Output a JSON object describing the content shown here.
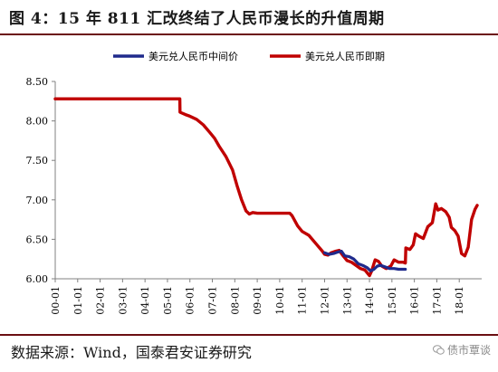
{
  "title": "图 4：15 年 811 汇改终结了人民币漫长的升值周期",
  "source": "数据来源：Wind，国泰君安证券研究",
  "watermark": "债市覃谈",
  "chart_data": {
    "type": "line",
    "ylim": [
      6.0,
      8.5
    ],
    "yticks": [
      "6.00",
      "6.50",
      "7.00",
      "7.50",
      "8.00",
      "8.50"
    ],
    "x_categories": [
      "00-01",
      "01-01",
      "02-01",
      "03-01",
      "04-01",
      "05-01",
      "06-01",
      "07-01",
      "08-01",
      "09-01",
      "10-01",
      "11-01",
      "12-01",
      "13-01",
      "14-01",
      "15-01",
      "16-01",
      "17-01",
      "18-01"
    ],
    "legend_position": "top",
    "series": [
      {
        "name": "美元兑人民币中间价",
        "color": "#1f2a8c",
        "points": [
          [
            2012.0,
            6.33
          ],
          [
            2012.2,
            6.31
          ],
          [
            2012.4,
            6.32
          ],
          [
            2012.6,
            6.34
          ],
          [
            2012.75,
            6.35
          ],
          [
            2012.9,
            6.29
          ],
          [
            2013.1,
            6.28
          ],
          [
            2013.3,
            6.25
          ],
          [
            2013.5,
            6.19
          ],
          [
            2013.7,
            6.17
          ],
          [
            2013.9,
            6.14
          ],
          [
            2014.05,
            6.1
          ],
          [
            2014.2,
            6.12
          ],
          [
            2014.35,
            6.16
          ],
          [
            2014.5,
            6.17
          ],
          [
            2014.7,
            6.15
          ],
          [
            2014.9,
            6.13
          ],
          [
            2015.1,
            6.13
          ],
          [
            2015.3,
            6.12
          ],
          [
            2015.45,
            6.12
          ],
          [
            2015.6,
            6.12
          ]
        ]
      },
      {
        "name": "美元兑人民币即期",
        "color": "#c00000",
        "points": [
          [
            2000.0,
            8.28
          ],
          [
            2005.0,
            8.28
          ],
          [
            2005.55,
            8.28
          ],
          [
            2005.56,
            8.11
          ],
          [
            2005.8,
            8.08
          ],
          [
            2006.0,
            8.06
          ],
          [
            2006.3,
            8.02
          ],
          [
            2006.6,
            7.95
          ],
          [
            2006.9,
            7.85
          ],
          [
            2007.1,
            7.78
          ],
          [
            2007.3,
            7.68
          ],
          [
            2007.6,
            7.55
          ],
          [
            2007.9,
            7.38
          ],
          [
            2008.1,
            7.18
          ],
          [
            2008.3,
            7.0
          ],
          [
            2008.5,
            6.86
          ],
          [
            2008.65,
            6.82
          ],
          [
            2008.8,
            6.84
          ],
          [
            2009.0,
            6.83
          ],
          [
            2009.5,
            6.83
          ],
          [
            2010.0,
            6.83
          ],
          [
            2010.45,
            6.83
          ],
          [
            2010.55,
            6.8
          ],
          [
            2010.8,
            6.67
          ],
          [
            2011.0,
            6.6
          ],
          [
            2011.3,
            6.55
          ],
          [
            2011.6,
            6.45
          ],
          [
            2011.9,
            6.35
          ],
          [
            2012.0,
            6.31
          ],
          [
            2012.15,
            6.3
          ],
          [
            2012.3,
            6.33
          ],
          [
            2012.5,
            6.35
          ],
          [
            2012.65,
            6.36
          ],
          [
            2012.8,
            6.3
          ],
          [
            2013.0,
            6.23
          ],
          [
            2013.2,
            6.21
          ],
          [
            2013.4,
            6.17
          ],
          [
            2013.6,
            6.13
          ],
          [
            2013.8,
            6.11
          ],
          [
            2014.0,
            6.04
          ],
          [
            2014.1,
            6.1
          ],
          [
            2014.25,
            6.24
          ],
          [
            2014.4,
            6.22
          ],
          [
            2014.55,
            6.16
          ],
          [
            2014.75,
            6.13
          ],
          [
            2014.95,
            6.16
          ],
          [
            2015.1,
            6.24
          ],
          [
            2015.3,
            6.21
          ],
          [
            2015.5,
            6.21
          ],
          [
            2015.6,
            6.2
          ],
          [
            2015.62,
            6.39
          ],
          [
            2015.8,
            6.37
          ],
          [
            2015.95,
            6.43
          ],
          [
            2016.05,
            6.57
          ],
          [
            2016.2,
            6.54
          ],
          [
            2016.4,
            6.51
          ],
          [
            2016.6,
            6.66
          ],
          [
            2016.8,
            6.71
          ],
          [
            2016.95,
            6.95
          ],
          [
            2017.05,
            6.87
          ],
          [
            2017.2,
            6.89
          ],
          [
            2017.4,
            6.85
          ],
          [
            2017.55,
            6.78
          ],
          [
            2017.65,
            6.65
          ],
          [
            2017.8,
            6.61
          ],
          [
            2017.95,
            6.54
          ],
          [
            2018.1,
            6.32
          ],
          [
            2018.25,
            6.29
          ],
          [
            2018.4,
            6.4
          ],
          [
            2018.55,
            6.75
          ],
          [
            2018.7,
            6.88
          ],
          [
            2018.8,
            6.93
          ]
        ]
      }
    ]
  }
}
